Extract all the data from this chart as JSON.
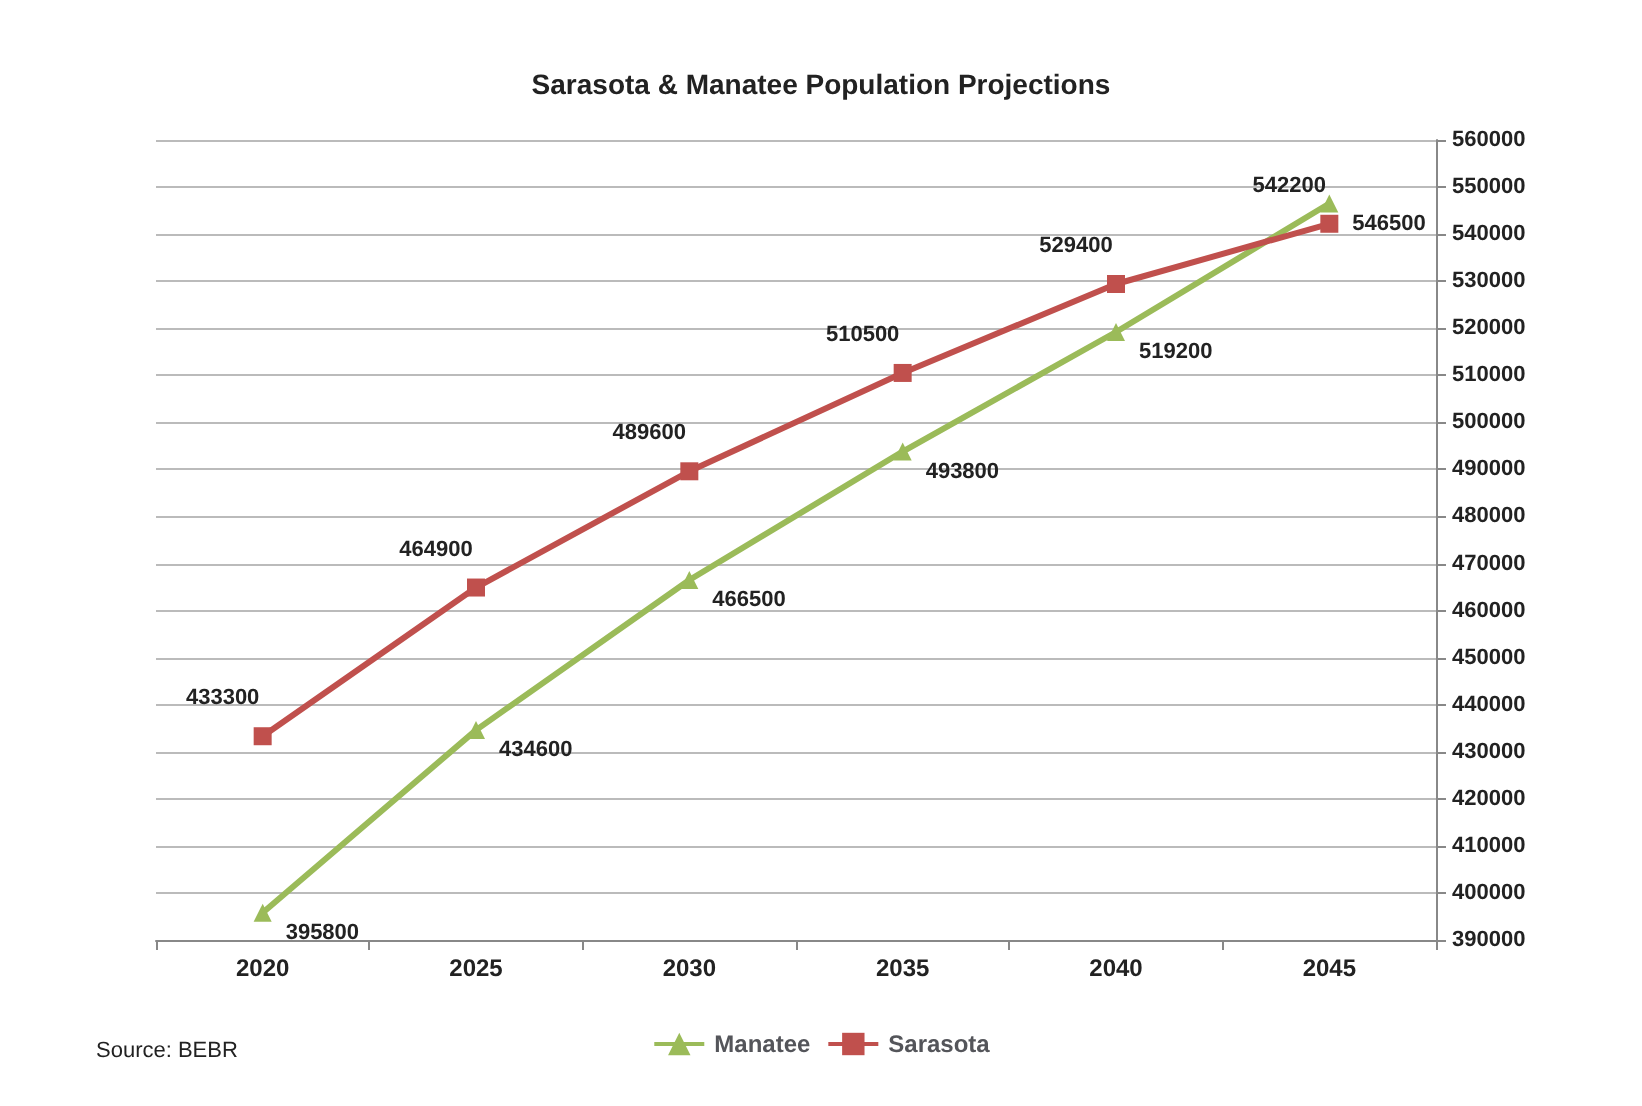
{
  "chart_data": {
    "type": "line",
    "title": "Sarasota & Manatee Population Projections",
    "categories": [
      "2020",
      "2025",
      "2030",
      "2035",
      "2040",
      "2045"
    ],
    "series": [
      {
        "name": "Manatee",
        "color": "#9bbb59",
        "marker": "triangle",
        "values": [
          395800,
          434600,
          466500,
          493800,
          519200,
          546500
        ]
      },
      {
        "name": "Sarasota",
        "color": "#c0504d",
        "marker": "square",
        "values": [
          433300,
          464900,
          489600,
          510500,
          529400,
          542200
        ]
      }
    ],
    "ylim": [
      390000,
      560000
    ],
    "yticks": [
      390000,
      400000,
      410000,
      420000,
      430000,
      440000,
      450000,
      460000,
      470000,
      480000,
      490000,
      500000,
      510000,
      520000,
      530000,
      540000,
      550000,
      560000
    ],
    "grid": "y",
    "legend": "bottom",
    "data_labels": true,
    "annotations": [
      "Source: BEBR"
    ]
  }
}
